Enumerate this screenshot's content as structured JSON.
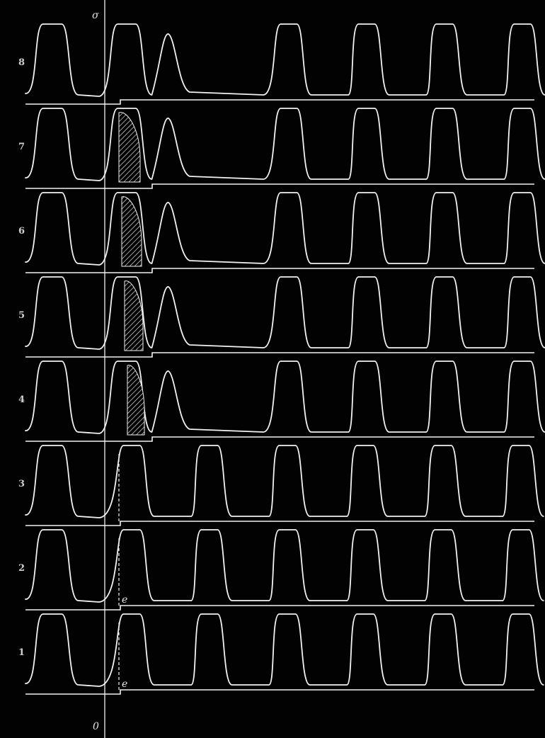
{
  "figure": {
    "background": "#020202",
    "stroke_color": "#f2f2f2",
    "top_marker": "σ",
    "bottom_marker": "0",
    "rows": [
      {
        "label": "8",
        "refractory_hatch": false,
        "extra_peak": true,
        "dashed_marker": false,
        "mark": ""
      },
      {
        "label": "7",
        "refractory_hatch": true,
        "extra_peak": true,
        "dashed_marker": false,
        "mark": ""
      },
      {
        "label": "6",
        "refractory_hatch": true,
        "extra_peak": true,
        "dashed_marker": false,
        "mark": ""
      },
      {
        "label": "5",
        "refractory_hatch": true,
        "extra_peak": true,
        "dashed_marker": false,
        "mark": ""
      },
      {
        "label": "4",
        "refractory_hatch": true,
        "extra_peak": true,
        "dashed_marker": false,
        "mark": ""
      },
      {
        "label": "3",
        "refractory_hatch": false,
        "extra_peak": false,
        "dashed_marker": true,
        "mark": ""
      },
      {
        "label": "2",
        "refractory_hatch": false,
        "extra_peak": false,
        "dashed_marker": true,
        "mark": "e"
      },
      {
        "label": "1",
        "refractory_hatch": false,
        "extra_peak": false,
        "dashed_marker": true,
        "mark": "e"
      }
    ]
  }
}
